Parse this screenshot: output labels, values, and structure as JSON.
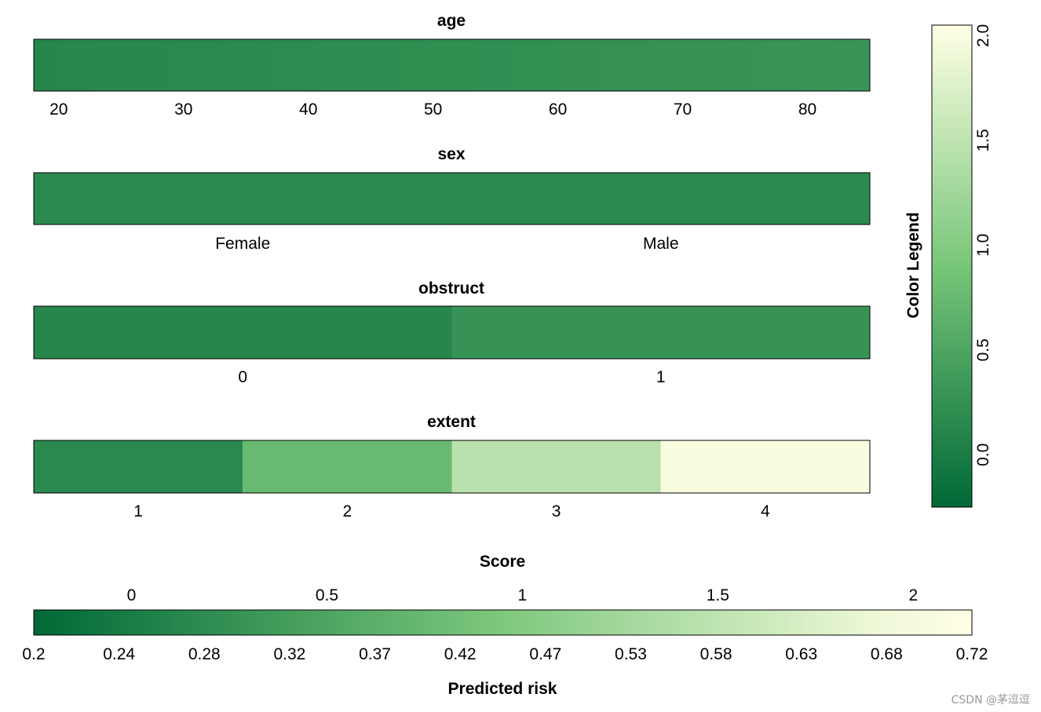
{
  "chart_data": [
    {
      "type": "heatmap",
      "title": "age",
      "ticks": [
        "20",
        "30",
        "40",
        "50",
        "60",
        "70",
        "80"
      ],
      "x_range": [
        18,
        85
      ],
      "score_range": [
        0.12,
        0.3
      ]
    },
    {
      "type": "heatmap",
      "title": "sex",
      "categories": [
        "Female",
        "Male"
      ],
      "scores": [
        0.15,
        0.16
      ]
    },
    {
      "type": "heatmap",
      "title": "obstruct",
      "categories": [
        "0",
        "1"
      ],
      "scores": [
        0.12,
        0.28
      ]
    },
    {
      "type": "heatmap",
      "title": "extent",
      "categories": [
        "1",
        "2",
        "3",
        "4"
      ],
      "scores": [
        0.15,
        0.75,
        1.45,
        2.0
      ]
    },
    {
      "type": "heatmap",
      "title": "Color Legend",
      "orientation": "vertical",
      "ticks": [
        "0.0",
        "0.5",
        "1.0",
        "1.5",
        "2.0"
      ],
      "range": [
        -0.25,
        2.05
      ]
    },
    {
      "type": "heatmap",
      "title": "Score",
      "xlabel": "Predicted risk",
      "score_ticks": [
        "0",
        "0.5",
        "1",
        "1.5",
        "2"
      ],
      "score_range": [
        -0.25,
        2.15
      ],
      "risk_ticks": [
        "0.2",
        "0.24",
        "0.28",
        "0.32",
        "0.37",
        "0.42",
        "0.47",
        "0.53",
        "0.58",
        "0.63",
        "0.68",
        "0.72"
      ]
    }
  ],
  "colors": {
    "low": "#006837",
    "mid": "#78c679",
    "high": "#ffffe5"
  },
  "watermark": "CSDN @茅逗逗"
}
